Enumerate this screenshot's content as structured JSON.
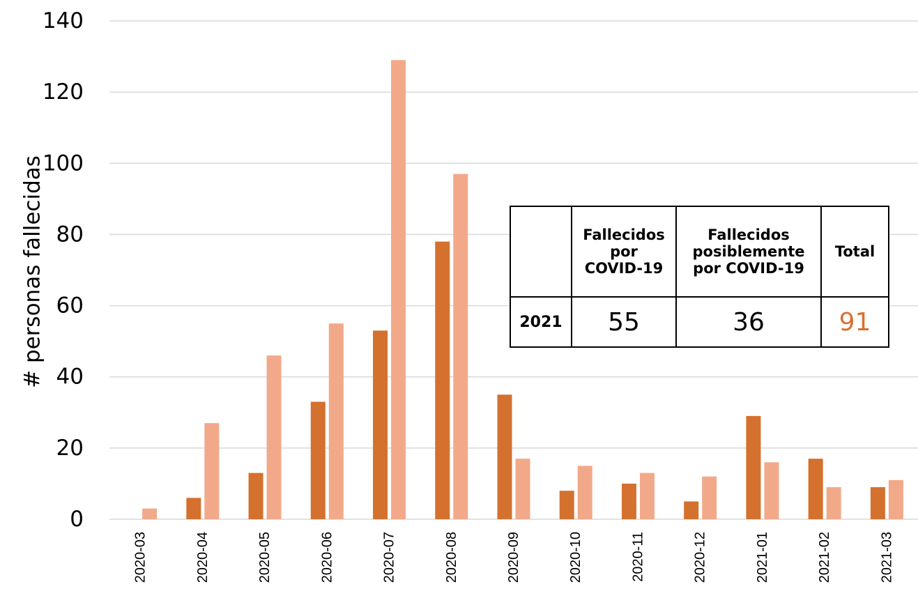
{
  "chart_data": {
    "type": "bar",
    "categories": [
      "2020-03",
      "2020-04",
      "2020-05",
      "2020-06",
      "2020-07",
      "2020-08",
      "2020-09",
      "2020-10",
      "2020-11",
      "2020-12",
      "2021-01",
      "2021-02",
      "2021-03"
    ],
    "series": [
      {
        "values": [
          0,
          6,
          13,
          33,
          53,
          78,
          35,
          8,
          10,
          5,
          29,
          17,
          9
        ],
        "color": "#d4712e"
      },
      {
        "values": [
          3,
          27,
          46,
          55,
          129,
          97,
          17,
          15,
          13,
          12,
          16,
          9,
          11
        ],
        "color": "#f2a98a"
      }
    ],
    "ylabel": "# personas fallecidas",
    "ylim": [
      0,
      140
    ],
    "yticks": [
      0,
      20,
      40,
      60,
      80,
      100,
      120,
      140
    ],
    "grid": true,
    "gridColor": "#d9d9d9"
  },
  "table": {
    "headers": [
      "",
      "Fallecidos por COVID-19",
      "Fallecidos posiblemente por COVID-19",
      "Total"
    ],
    "header_lines": [
      [
        ""
      ],
      [
        "Fallecidos",
        "por",
        "COVID-19"
      ],
      [
        "Fallecidos",
        "posiblemente",
        "por COVID-19"
      ],
      [
        "Total"
      ]
    ],
    "row_label": "2021",
    "values": [
      "55",
      "36",
      "91"
    ],
    "total_color": "#d97030"
  }
}
